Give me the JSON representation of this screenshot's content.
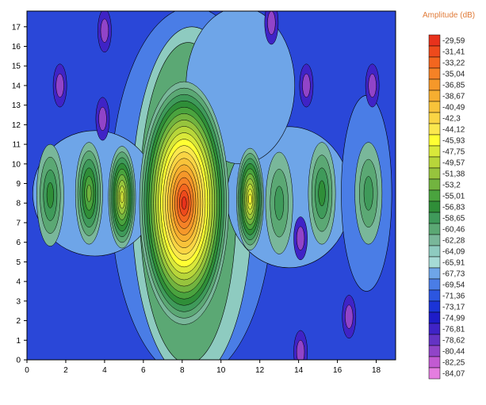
{
  "chart_data": {
    "type": "heatmap",
    "title": "",
    "xlabel": "",
    "ylabel": "",
    "xlim": [
      0,
      19
    ],
    "ylim": [
      0,
      17.8
    ],
    "x_ticks": [
      "0",
      "2",
      "4",
      "6",
      "8",
      "10",
      "12",
      "14",
      "16",
      "18"
    ],
    "y_ticks": [
      "0",
      "1",
      "2",
      "3",
      "4",
      "5",
      "6",
      "7",
      "8",
      "9",
      "10",
      "11",
      "12",
      "13",
      "14",
      "15",
      "16",
      "17"
    ],
    "grid": false,
    "legend_position": "right",
    "colorbar": {
      "title": "Amplitude (dB)",
      "levels": [
        "-29,59",
        "-31,41",
        "-33,22",
        "-35,04",
        "-36,85",
        "-38,67",
        "-40,49",
        "-42,3",
        "-44,12",
        "-45,93",
        "-47,75",
        "-49,57",
        "-51,38",
        "-53,2",
        "-55,01",
        "-56,83",
        "-58,65",
        "-60,46",
        "-62,28",
        "-64,09",
        "-65,91",
        "-67,73",
        "-69,54",
        "-71,36",
        "-73,17",
        "-74,99",
        "-76,81",
        "-78,62",
        "-80,44",
        "-82,25",
        "-84,07"
      ],
      "colors": [
        "#e8321c",
        "#ee4a1c",
        "#f3661f",
        "#f58226",
        "#f5982a",
        "#f6ae30",
        "#f8c33a",
        "#fad544",
        "#fbe84e",
        "#ffff33",
        "#d9e83a",
        "#b8d63a",
        "#97c43d",
        "#72b43f",
        "#4aa33e",
        "#2f8e38",
        "#3f9a5a",
        "#5ba874",
        "#79b79a",
        "#8ecbc0",
        "#a6dbd6",
        "#6ea5e8",
        "#4a7de6",
        "#2c56e0",
        "#1b34d6",
        "#1e1cc8",
        "#3f23c6",
        "#6433c4",
        "#9144c8",
        "#c25ad2",
        "#e47ee0"
      ]
    },
    "peaks": [
      {
        "x": 8.1,
        "y": 8.0,
        "value": -29.59
      },
      {
        "x": 11.5,
        "y": 8.2,
        "value": -45.93
      },
      {
        "x": 4.9,
        "y": 8.3,
        "value": -47.75
      },
      {
        "x": 3.2,
        "y": 8.5,
        "value": -53.2
      },
      {
        "x": 1.2,
        "y": 8.4,
        "value": -56.83
      },
      {
        "x": 15.2,
        "y": 8.5,
        "value": -56.83
      },
      {
        "x": 13.0,
        "y": 8.0,
        "value": -58.65
      },
      {
        "x": 17.6,
        "y": 8.5,
        "value": -58.65
      }
    ]
  }
}
